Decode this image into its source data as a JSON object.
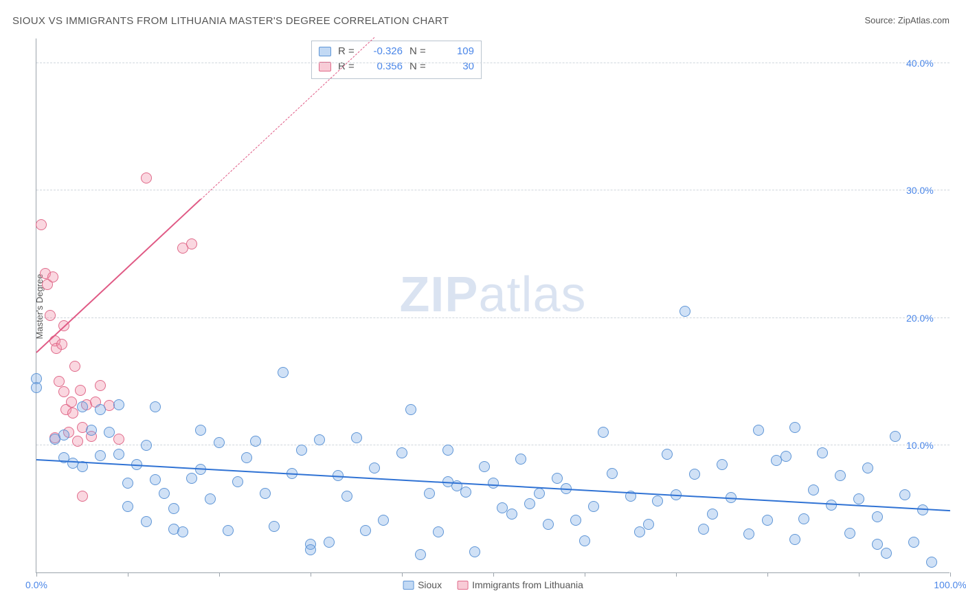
{
  "title": "SIOUX VS IMMIGRANTS FROM LITHUANIA MASTER'S DEGREE CORRELATION CHART",
  "source_prefix": "Source: ",
  "source_name": "ZipAtlas.com",
  "ylabel": "Master's Degree",
  "watermark_bold": "ZIP",
  "watermark_rest": "atlas",
  "chart": {
    "type": "scatter",
    "xlim": [
      0,
      100
    ],
    "ylim": [
      0,
      42
    ],
    "yticks": [
      10,
      20,
      30,
      40
    ],
    "ytick_labels": [
      "10.0%",
      "20.0%",
      "30.0%",
      "40.0%"
    ],
    "xticks": [
      0,
      10,
      20,
      30,
      40,
      50,
      60,
      70,
      80,
      90,
      100
    ],
    "xaxis_labels": [
      {
        "x": 0,
        "text": "0.0%"
      },
      {
        "x": 100,
        "text": "100.0%"
      }
    ],
    "background_color": "#ffffff",
    "grid_color": "#cfd6dc",
    "axis_color": "#9ba3ab",
    "tick_label_color": "#4a86e8",
    "marker_radius": 8,
    "marker_stroke_width": 1.5,
    "series": {
      "sioux": {
        "label": "Sioux",
        "fill": "rgba(120,170,230,0.35)",
        "stroke": "#5e95d6",
        "trend_color": "#2f72d4",
        "trend_width": 2.5,
        "trend_dash": "solid",
        "trend": {
          "x1": 0,
          "y1": 8.8,
          "x2": 100,
          "y2": 4.8
        },
        "points": [
          [
            0,
            15.2
          ],
          [
            0,
            14.5
          ],
          [
            2,
            10.5
          ],
          [
            3,
            9
          ],
          [
            3,
            10.8
          ],
          [
            4,
            8.6
          ],
          [
            5,
            8.3
          ],
          [
            5,
            13
          ],
          [
            6,
            11.2
          ],
          [
            7,
            12.8
          ],
          [
            7,
            9.2
          ],
          [
            8,
            11
          ],
          [
            9,
            9.3
          ],
          [
            9,
            13.2
          ],
          [
            10,
            5.2
          ],
          [
            10,
            7
          ],
          [
            11,
            8.5
          ],
          [
            12,
            4
          ],
          [
            12,
            10
          ],
          [
            13,
            7.3
          ],
          [
            13,
            13
          ],
          [
            14,
            6.2
          ],
          [
            15,
            5
          ],
          [
            15,
            3.4
          ],
          [
            16,
            3.2
          ],
          [
            17,
            7.4
          ],
          [
            18,
            11.2
          ],
          [
            18,
            8.1
          ],
          [
            19,
            5.8
          ],
          [
            20,
            10.2
          ],
          [
            21,
            3.3
          ],
          [
            22,
            7.1
          ],
          [
            23,
            9
          ],
          [
            24,
            10.3
          ],
          [
            25,
            6.2
          ],
          [
            26,
            3.6
          ],
          [
            27,
            15.7
          ],
          [
            28,
            7.8
          ],
          [
            29,
            9.6
          ],
          [
            30,
            2.2
          ],
          [
            30,
            1.8
          ],
          [
            31,
            10.4
          ],
          [
            32,
            2.4
          ],
          [
            33,
            7.6
          ],
          [
            34,
            6
          ],
          [
            35,
            10.6
          ],
          [
            36,
            3.3
          ],
          [
            37,
            8.2
          ],
          [
            38,
            4.1
          ],
          [
            40,
            9.4
          ],
          [
            41,
            12.8
          ],
          [
            42,
            1.4
          ],
          [
            43,
            6.2
          ],
          [
            44,
            3.2
          ],
          [
            45,
            7.1
          ],
          [
            45,
            9.6
          ],
          [
            46,
            6.8
          ],
          [
            47,
            6.3
          ],
          [
            48,
            1.6
          ],
          [
            49,
            8.3
          ],
          [
            50,
            7
          ],
          [
            51,
            5.1
          ],
          [
            52,
            4.6
          ],
          [
            53,
            8.9
          ],
          [
            54,
            5.4
          ],
          [
            55,
            6.2
          ],
          [
            56,
            3.8
          ],
          [
            57,
            7.4
          ],
          [
            58,
            6.6
          ],
          [
            59,
            4.1
          ],
          [
            60,
            2.5
          ],
          [
            61,
            5.2
          ],
          [
            62,
            11
          ],
          [
            63,
            7.8
          ],
          [
            65,
            6
          ],
          [
            66,
            3.2
          ],
          [
            67,
            3.8
          ],
          [
            68,
            5.6
          ],
          [
            69,
            9.3
          ],
          [
            70,
            6.1
          ],
          [
            71,
            20.5
          ],
          [
            72,
            7.7
          ],
          [
            73,
            3.4
          ],
          [
            74,
            4.6
          ],
          [
            75,
            8.5
          ],
          [
            76,
            5.9
          ],
          [
            78,
            3
          ],
          [
            79,
            11.2
          ],
          [
            80,
            4.1
          ],
          [
            81,
            8.8
          ],
          [
            82,
            9.1
          ],
          [
            83,
            2.6
          ],
          [
            83,
            11.4
          ],
          [
            84,
            4.2
          ],
          [
            85,
            6.5
          ],
          [
            86,
            9.4
          ],
          [
            87,
            5.3
          ],
          [
            88,
            7.6
          ],
          [
            89,
            3.1
          ],
          [
            90,
            5.8
          ],
          [
            91,
            8.2
          ],
          [
            92,
            4.4
          ],
          [
            92,
            2.2
          ],
          [
            93,
            1.5
          ],
          [
            94,
            10.7
          ],
          [
            95,
            6.1
          ],
          [
            96,
            2.4
          ],
          [
            97,
            4.9
          ],
          [
            98,
            0.8
          ]
        ]
      },
      "lithuania": {
        "label": "Immigrants from Lithuania",
        "fill": "rgba(240,140,165,0.35)",
        "stroke": "#e06a8a",
        "trend_color": "#e05a85",
        "trend_width": 2,
        "trend_solid_end_x": 18,
        "trend": {
          "x1": 0,
          "y1": 17.2,
          "x2": 40,
          "y2": 44
        },
        "points": [
          [
            0.5,
            27.3
          ],
          [
            1,
            23.5
          ],
          [
            1.2,
            22.6
          ],
          [
            1.5,
            20.2
          ],
          [
            1.8,
            23.2
          ],
          [
            2,
            18.2
          ],
          [
            2,
            10.6
          ],
          [
            2.2,
            17.6
          ],
          [
            2.5,
            15
          ],
          [
            2.8,
            17.9
          ],
          [
            3,
            14.2
          ],
          [
            3,
            19.4
          ],
          [
            3.2,
            12.8
          ],
          [
            3.5,
            11
          ],
          [
            3.8,
            13.4
          ],
          [
            4,
            12.5
          ],
          [
            4.2,
            16.2
          ],
          [
            4.5,
            10.3
          ],
          [
            4.8,
            14.3
          ],
          [
            5,
            11.4
          ],
          [
            5,
            6
          ],
          [
            5.5,
            13.2
          ],
          [
            6,
            10.7
          ],
          [
            6.5,
            13.4
          ],
          [
            7,
            14.7
          ],
          [
            8,
            13.1
          ],
          [
            9,
            10.5
          ],
          [
            12,
            31
          ],
          [
            16,
            25.5
          ],
          [
            17,
            25.8
          ]
        ]
      }
    }
  },
  "legend_top": {
    "rows": [
      {
        "swatch_fill": "rgba(120,170,230,0.45)",
        "swatch_stroke": "#5e95d6",
        "r_label": "R =",
        "r_value": "-0.326",
        "n_label": "N =",
        "n_value": "109"
      },
      {
        "swatch_fill": "rgba(240,140,165,0.45)",
        "swatch_stroke": "#e06a8a",
        "r_label": "R =",
        "r_value": "0.356",
        "n_label": "N =",
        "n_value": "30"
      }
    ]
  },
  "legend_bottom": [
    {
      "fill": "rgba(120,170,230,0.45)",
      "stroke": "#5e95d6",
      "label": "Sioux"
    },
    {
      "fill": "rgba(240,140,165,0.45)",
      "stroke": "#e06a8a",
      "label": "Immigrants from Lithuania"
    }
  ]
}
